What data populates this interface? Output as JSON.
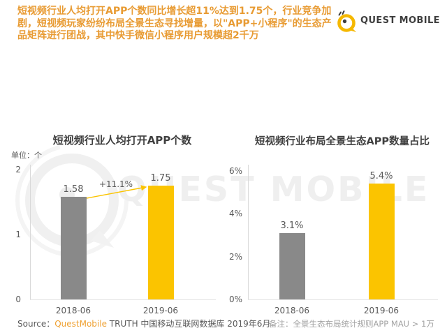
{
  "headline": {
    "text": "短视频行业人均打开APP个数同比增长超11%达到1.75个，行业竞争加剧，短视频玩家纷纷布局全景生态寻找增量，以\"APP+小程序\"的生态产品矩阵进行团战，其中快手微信小程序用户规模超2千万",
    "color": "#E89B33"
  },
  "logo": {
    "brand": "QUEST MOBILE",
    "icon": "questmobile-q-icon",
    "icon_color": "#F5B800",
    "text_color": "#3E3E3E"
  },
  "watermark": {
    "text": "QUEST MOBILE",
    "icon": "questmobile-q-icon",
    "color": "#EFEFEF"
  },
  "chart_data": [
    {
      "type": "bar",
      "title": "短视频行业人均打开APP个数",
      "unit_label": "单位：个",
      "categories": [
        "2018-06",
        "2019-06"
      ],
      "values": [
        1.58,
        1.75
      ],
      "value_labels": [
        "1.58",
        "1.75"
      ],
      "bar_colors": [
        "#898989",
        "#FBC400"
      ],
      "annotation": "+11.1%",
      "annotation_arrow_color": "#FBC400",
      "yticks": [
        "2",
        "1",
        "0"
      ],
      "ylim": [
        0,
        2
      ],
      "grid": false,
      "legend": "none"
    },
    {
      "type": "bar",
      "title": "短视频行业布局全景生态APP数量占比",
      "categories": [
        "2018-06",
        "2019-06"
      ],
      "values": [
        3.1,
        5.4
      ],
      "value_labels": [
        "3.1%",
        "5.4%"
      ],
      "bar_colors": [
        "#898989",
        "#FBC400"
      ],
      "yticks": [
        "6%",
        "4%",
        "2%",
        "0%"
      ],
      "ylim": [
        0,
        6
      ],
      "grid": false,
      "legend": "none"
    }
  ],
  "footer": {
    "source_prefix": "Source：",
    "source_brand": "QuestMobile",
    "source_rest": " TRUTH 中国移动互联网数据库 2019年6月",
    "note": "备注：全景生态布局统计规则APP MAU > 1万"
  }
}
